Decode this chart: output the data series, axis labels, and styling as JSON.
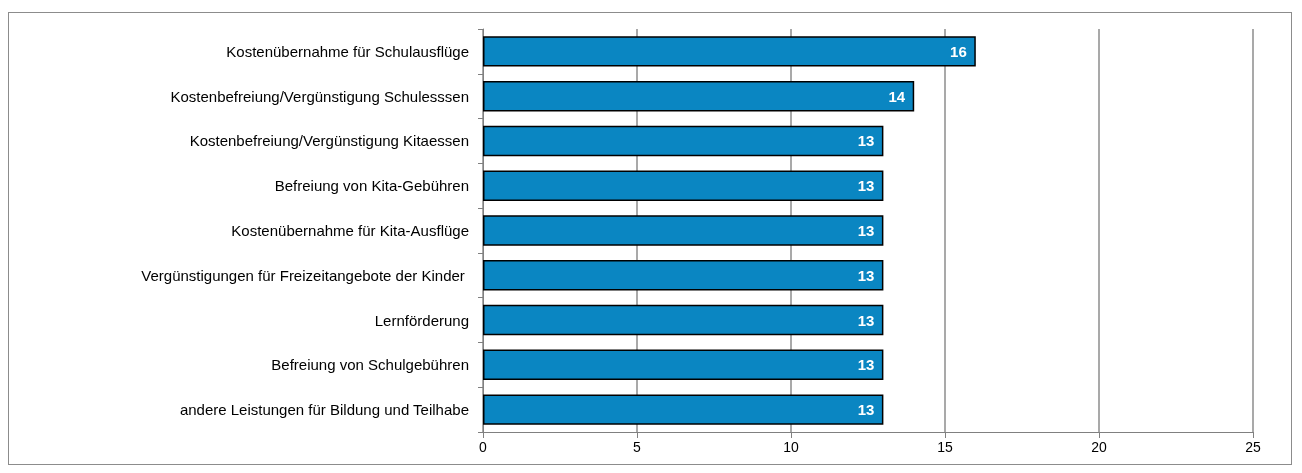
{
  "chart_data": {
    "type": "bar",
    "orientation": "horizontal",
    "categories": [
      "Kostenübernahme für Schulausflüge",
      "Kostenbefreiung/Vergünstigung Schulesssen",
      "Kostenbefreiung/Vergünstigung Kitaessen",
      "Befreiung von Kita-Gebühren",
      "Kostenübernahme für Kita-Ausflüge",
      "Vergünstigungen für Freizeitangebote der Kinder ",
      "Lernförderung",
      "Befreiung von Schulgebühren",
      "andere Leistungen für Bildung und Teilhabe"
    ],
    "values": [
      16,
      14,
      13,
      13,
      13,
      13,
      13,
      13,
      13
    ],
    "color": "#0a86c2",
    "xlim": [
      0,
      25
    ],
    "xticks": [
      0,
      5,
      10,
      15,
      20,
      25
    ],
    "grid": "x",
    "data_labels": true
  }
}
